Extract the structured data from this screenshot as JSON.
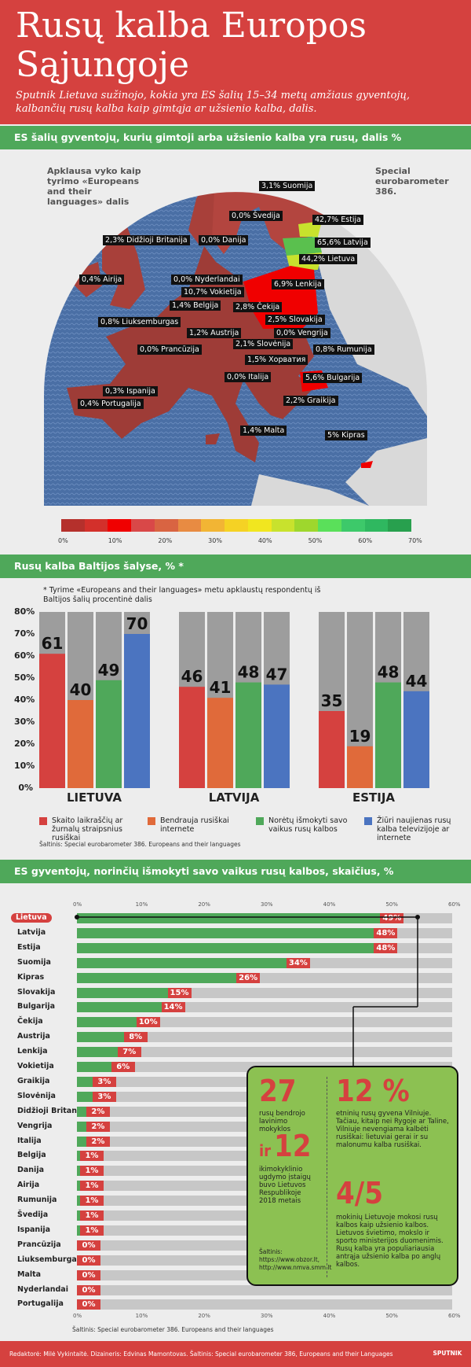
{
  "header": {
    "title_line1": "Rusų kalba Europos",
    "title_line2": "Sąjungoje",
    "subtitle": "Sputnik Lietuva sužinojo, kokia yra ES šalių 15–34 metų amžiaus gyventojų, kalbančių rusų kalba kaip gimtąja ar užsienio kalba, dalis."
  },
  "map_section": {
    "heading": "ES šalių gyventojų, kurių gimtoji arba užsienio kalba yra rusų, dalis %",
    "note_left": "Apklausa vyko kaip tyrimo «Europeans and their languages» dalis",
    "note_right": "Special eurobarometer 386.",
    "scale_ticks": [
      "0%",
      "10%",
      "20%",
      "30%",
      "40%",
      "50%",
      "60%",
      "70%"
    ],
    "scale_colors": [
      "#b5302c",
      "#d3302b",
      "#f00000",
      "#d94848",
      "#d96442",
      "#e88b42",
      "#f2b534",
      "#f5d224",
      "#f1e61f",
      "#c8e22d",
      "#9ed72d",
      "#5ae05a",
      "#3dc96a",
      "#2fb860",
      "#28a04e"
    ]
  },
  "chart_data": [
    {
      "type": "map",
      "title": "ES šalių gyventojų, kurių gimtoji arba užsienio kalba yra rusų, dalis %",
      "labels": [
        {
          "country": "Suomija",
          "text": "3,1% Suomija",
          "value": 3.1
        },
        {
          "country": "Švedija",
          "text": "0,0% Švedija",
          "value": 0.0
        },
        {
          "country": "Estija",
          "text": "42,7% Estija",
          "value": 42.7
        },
        {
          "country": "Latvija",
          "text": "65,6% Latvija",
          "value": 65.6
        },
        {
          "country": "Lietuva",
          "text": "44,2% Lietuva",
          "value": 44.2
        },
        {
          "country": "Didžioji Britanija",
          "text": "2,3% Didžioji Britanija",
          "value": 2.3
        },
        {
          "country": "Danija",
          "text": "0,0% Danija",
          "value": 0.0
        },
        {
          "country": "Airija",
          "text": "0,4% Airija",
          "value": 0.4
        },
        {
          "country": "Nyderlandai",
          "text": "0,0% Nyderlandai",
          "value": 0.0
        },
        {
          "country": "Lenkija",
          "text": "6,9% Lenkija",
          "value": 6.9
        },
        {
          "country": "Vokietija",
          "text": "10,7% Vokietija",
          "value": 10.7
        },
        {
          "country": "Belgija",
          "text": "1,4% Belgija",
          "value": 1.4
        },
        {
          "country": "Čekija",
          "text": "2,8% Čekija",
          "value": 2.8
        },
        {
          "country": "Liuksemburgas",
          "text": "0,8% Liuksemburgas",
          "value": 0.8
        },
        {
          "country": "Slovakija",
          "text": "2,5% Slovakija",
          "value": 2.5
        },
        {
          "country": "Austrija",
          "text": "1,2% Austrija",
          "value": 1.2
        },
        {
          "country": "Vengrija",
          "text": "0,0% Vengrija",
          "value": 0.0
        },
        {
          "country": "Prancūzija",
          "text": "0,0% Prancūzija",
          "value": 0.0
        },
        {
          "country": "Slovėnija",
          "text": "2,1% Slovėnija",
          "value": 2.1
        },
        {
          "country": "Rumunija",
          "text": "0,8% Rumunija",
          "value": 0.8
        },
        {
          "country": "Хорватия",
          "text": "1,5% Хорватия",
          "value": 1.5
        },
        {
          "country": "Italija",
          "text": "0,0% Italija",
          "value": 0.0
        },
        {
          "country": "Bulgarija",
          "text": "5,6% Bulgarija",
          "value": 5.6
        },
        {
          "country": "Ispanija",
          "text": "0,3% Ispanija",
          "value": 0.3
        },
        {
          "country": "Graikija",
          "text": "2,2% Graikija",
          "value": 2.2
        },
        {
          "country": "Portugalija",
          "text": "0,4% Portugalija",
          "value": 0.4
        },
        {
          "country": "Malta",
          "text": "1,4% Malta",
          "value": 1.4
        },
        {
          "country": "Kipras",
          "text": "5% Kipras",
          "value": 5.0
        }
      ],
      "scale_range": [
        0,
        70
      ]
    },
    {
      "type": "bar",
      "title": "Rusų kalba Baltijos šalyse, % *",
      "categories": [
        "LIETUVA",
        "LATVIJA",
        "ESTIJA"
      ],
      "series": [
        {
          "name": "Skaito laikraščių ar žurnalų straipsnius rusiškai",
          "color": "#d5413f",
          "values": [
            61,
            46,
            35
          ]
        },
        {
          "name": "Bendrauja rusiškai internete",
          "color": "#e06a3a",
          "values": [
            40,
            41,
            19
          ]
        },
        {
          "name": "Norėtų išmokyti savo vaikus rusų kalbos",
          "color": "#4fa85a",
          "values": [
            49,
            48,
            48
          ]
        },
        {
          "name": "Žiūri naujienas rusų kalba televizijoje ar internete",
          "color": "#4b74c0",
          "values": [
            70,
            47,
            44
          ]
        }
      ],
      "ylim": [
        0,
        80
      ],
      "yticks": [
        "0%",
        "10%",
        "20%",
        "30%",
        "40%",
        "50%",
        "60%",
        "70%",
        "80%"
      ]
    },
    {
      "type": "bar",
      "orientation": "horizontal",
      "title": "ES gyventojų, norinčių išmokyti savo vaikus rusų kalbos, skaičius, %",
      "categories": [
        "Lietuva",
        "Latvija",
        "Estija",
        "Suomija",
        "Kipras",
        "Slovakija",
        "Bulgarija",
        "Čekija",
        "Austrija",
        "Lenkija",
        "Vokietija",
        "Graikija",
        "Slovėnija",
        "Didžioji Britanija",
        "Vengrija",
        "Italija",
        "Belgija",
        "Danija",
        "Airija",
        "Rumunija",
        "Švedija",
        "Ispanija",
        "Prancūzija",
        "Liuksemburgas",
        "Malta",
        "Nyderlandai",
        "Portugalija"
      ],
      "values": [
        49,
        48,
        48,
        34,
        26,
        15,
        14,
        10,
        8,
        7,
        6,
        3,
        3,
        2,
        2,
        2,
        1,
        1,
        1,
        1,
        1,
        1,
        0,
        0,
        0,
        0,
        0
      ],
      "xlim": [
        0,
        60
      ],
      "xticks": [
        "0%",
        "10%",
        "20%",
        "30%",
        "40%",
        "50%",
        "60%"
      ]
    }
  ],
  "baltic_section": {
    "heading": "Rusų kalba Baltijos šalyse, % *",
    "note": "* Tyrime «Europeans and their languages» metu apklaustų respondentų iš Baltijos šalių procentinė dalis",
    "source": "Šaltinis:  Special eurobarometer 386. Europeans and their languages"
  },
  "children_section": {
    "heading": "ES gyventojų, norinčių išmokyti savo vaikus rusų kalbos, skaičius, %",
    "source": "Šaltinis:  Special eurobarometer 386. Europeans and their languages"
  },
  "fact_box": {
    "big1": "27",
    "text1": "rusų bendrojo lavinimo mokyklos",
    "prefix2": "ir",
    "big2": "12",
    "text2": "ikimokyklinio ugdymo įstaigų buvo Lietuvos Respublikoje 2018 metais",
    "source_label": "Šaltinis:",
    "source1": "https://www.obzor.lt,",
    "source2": "http://www.nmva.smm.lt",
    "big3": "12 %",
    "text3": "etninių rusų gyvena Vilniuje. Tačiau, kitaip nei Rygoje ar Taline, Vilniuje nevengiama kalbėti rusiškai: lietuviai gerai ir su malonumu kalba rusiškai.",
    "big4": "4/5",
    "text4": "mokinių Lietuvoje mokosi rusų kalbos kaip užsienio kalbos. Lietuvos švietimo, mokslo ir sporto ministerijos duomenimis. Rusų kalba yra populiariausia antrąja užsienio kalba po anglų kalbos."
  },
  "footer": {
    "credits": "Redaktorė: Milė Vykintaitė. Dizaineris: Edvinas Mamontovas. Šaltinis: Special eurobarometer 386, Europeans and their Languages",
    "brand": "SPUTNIK"
  }
}
